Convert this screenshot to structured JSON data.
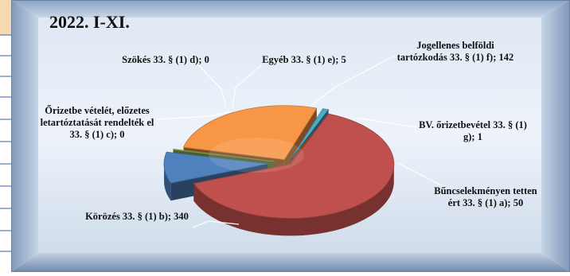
{
  "chart_data": {
    "type": "pie",
    "title": "2022. I-XI.",
    "slices": [
      {
        "label": "Körözés 33. § (1) b); 340",
        "value": 340,
        "color": "#c0504d"
      },
      {
        "label": "Bűncselekményen tetten ért 33. § (1) a); 50",
        "value": 50,
        "color": "#4f81bd"
      },
      {
        "label": "BV. őrizetbevétel 33. § (1) g); 1",
        "value": 1,
        "color": "#9bbb59"
      },
      {
        "label": "Jogellenes belföldi tartózkodás 33. § (1) f); 142",
        "value": 142,
        "color": "#f79646"
      },
      {
        "label": "Egyéb 33. § (1) e); 5",
        "value": 5,
        "color": "#4bacc6"
      },
      {
        "label": "Szökés 33. § (1) d); 0",
        "value": 0,
        "color": "#8064a2"
      },
      {
        "label": "Őrizetbe vételét, előzetes letartóztatását rendelték el 33. § (1) c); 0",
        "value": 0,
        "color": "#2c4d75"
      }
    ]
  }
}
